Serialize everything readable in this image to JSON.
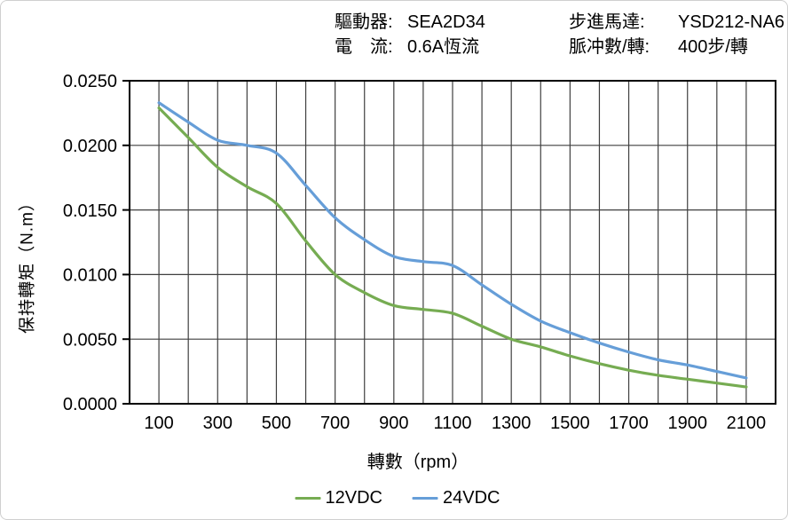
{
  "header": {
    "items": [
      {
        "label": "驅動器:",
        "value": "SEA2D34"
      },
      {
        "label": "步進馬達:",
        "value": "YSD212-NA6"
      },
      {
        "label": "電　流:",
        "value": "0.6A恆流"
      },
      {
        "label": "脈冲數/轉:",
        "value": "400步/轉"
      }
    ]
  },
  "chart_data": {
    "type": "line",
    "title": "",
    "xlabel": "轉數（rpm）",
    "ylabel": "保持轉矩（N.m）",
    "x": [
      100,
      200,
      300,
      400,
      500,
      600,
      700,
      800,
      900,
      1000,
      1100,
      1200,
      1300,
      1400,
      1500,
      1600,
      1700,
      1800,
      1900,
      2000,
      2100
    ],
    "series": [
      {
        "name": "12VDC",
        "color": "#76AC52",
        "values": [
          0.0229,
          0.0206,
          0.0183,
          0.0168,
          0.0155,
          0.0126,
          0.01,
          0.0086,
          0.0076,
          0.0073,
          0.007,
          0.006,
          0.005,
          0.0044,
          0.0037,
          0.0031,
          0.0026,
          0.0022,
          0.0019,
          0.0016,
          0.0013
        ]
      },
      {
        "name": "24VDC",
        "color": "#669ED8",
        "values": [
          0.0233,
          0.0218,
          0.0204,
          0.02,
          0.0194,
          0.0169,
          0.0144,
          0.0127,
          0.0114,
          0.011,
          0.0107,
          0.0092,
          0.0077,
          0.0064,
          0.0055,
          0.0047,
          0.004,
          0.0034,
          0.003,
          0.0025,
          0.002
        ]
      }
    ],
    "xlim": [
      0,
      2200
    ],
    "ylim": [
      0,
      0.025
    ],
    "x_grid_step": 100,
    "y_grid_step": 0.005,
    "x_tick_labels": [
      "100",
      "300",
      "500",
      "700",
      "900",
      "1100",
      "1300",
      "1500",
      "1700",
      "1900",
      "2100"
    ],
    "x_tick_label_values": [
      100,
      300,
      500,
      700,
      900,
      1100,
      1300,
      1500,
      1700,
      1900,
      2100
    ],
    "y_tick_labels": [
      "0.0000",
      "0.0050",
      "0.0100",
      "0.0150",
      "0.0200",
      "0.0250"
    ],
    "y_tick_values": [
      0,
      0.005,
      0.01,
      0.015,
      0.02,
      0.025
    ],
    "grid": true,
    "grid_color": "#3f3f3f",
    "border_color": "#000000",
    "legend_position": "bottom"
  }
}
